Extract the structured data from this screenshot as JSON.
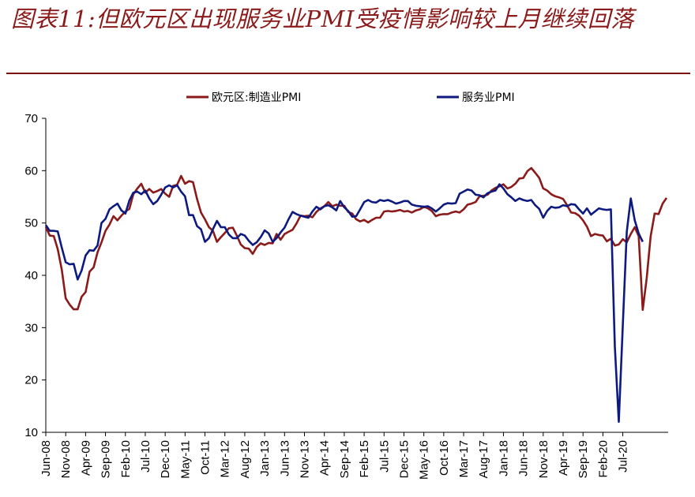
{
  "title": "图表11:但欧元区出现服务业PMI受疫情影响较上月继续回落",
  "chart_data": {
    "type": "line",
    "x_start": "2008-06",
    "x_end": "2020-11",
    "x_tick_labels": [
      "Jun-08",
      "Nov-08",
      "Apr-09",
      "Sep-09",
      "Feb-10",
      "Jul-10",
      "Dec-10",
      "May-11",
      "Oct-11",
      "Mar-12",
      "Aug-12",
      "Jan-13",
      "Jun-13",
      "Nov-13",
      "Apr-14",
      "Sep-14",
      "Feb-15",
      "Jul-15",
      "Dec-15",
      "May-16",
      "Oct-16",
      "Mar-17",
      "Aug-17",
      "Jan-18",
      "Jun-18",
      "Nov-18",
      "Apr-19",
      "Sep-19",
      "Feb-20",
      "Jul-20"
    ],
    "ylim": [
      10,
      70
    ],
    "y_ticks": [
      10,
      20,
      30,
      40,
      50,
      60,
      70
    ],
    "legend_position": "top",
    "series": [
      {
        "name": "欧元区:制造业PMI",
        "color": "#8b1a1a",
        "values": [
          49.2,
          47.6,
          47.5,
          45.0,
          41.1,
          35.6,
          34.4,
          33.5,
          33.5,
          35.9,
          36.8,
          40.7,
          41.5,
          44.4,
          46.3,
          48.5,
          49.7,
          51.3,
          50.5,
          51.4,
          52.2,
          52.7,
          55.5,
          56.6,
          57.5,
          55.8,
          56.5,
          55.8,
          56.1,
          56.5,
          55.6,
          55.0,
          57.1,
          57.3,
          59.0,
          57.5,
          58.0,
          57.8,
          54.6,
          52.0,
          50.7,
          49.2,
          48.5,
          46.4,
          47.3,
          48.1,
          49.0,
          49.1,
          47.6,
          45.9,
          45.2,
          45.1,
          44.1,
          45.4,
          46.1,
          45.8,
          46.2,
          46.1,
          47.9,
          46.8,
          47.9,
          48.3,
          48.7,
          49.9,
          51.4,
          51.3,
          51.4,
          51.1,
          52.1,
          52.8,
          53.2,
          54.0,
          53.2,
          53.5,
          53.3,
          53.3,
          52.1,
          51.8,
          50.7,
          50.3,
          50.6,
          50.1,
          50.6,
          51.0,
          51.0,
          52.2,
          52.3,
          52.2,
          52.3,
          52.5,
          52.2,
          52.3,
          52.0,
          52.4,
          52.6,
          53.1,
          52.8,
          52.3,
          51.3,
          51.6,
          51.7,
          51.7,
          52.0,
          52.2,
          52.0,
          52.6,
          53.5,
          53.7,
          54.0,
          55.1,
          55.2,
          55.4,
          56.2,
          56.7,
          57.0,
          57.4,
          56.6,
          56.9,
          57.5,
          58.5,
          58.6,
          59.9,
          60.5,
          59.6,
          58.6,
          56.6,
          56.2,
          55.5,
          55.1,
          54.9,
          54.6,
          53.4,
          52.0,
          51.9,
          51.4,
          50.5,
          49.3,
          47.5,
          47.9,
          47.7,
          47.6,
          46.5,
          47.0,
          45.7,
          45.9,
          46.9,
          46.3,
          47.9,
          49.2,
          47.5,
          33.4,
          39.4,
          47.4,
          51.8,
          51.7,
          53.7,
          54.8
        ],
        "color_note": "dark red"
      },
      {
        "name": "服务业PMI",
        "color": "#0d1a80",
        "values": [
          49.6,
          48.5,
          48.5,
          48.4,
          45.3,
          42.5,
          42.1,
          42.2,
          39.2,
          40.9,
          43.8,
          44.8,
          44.7,
          45.7,
          50.0,
          50.8,
          52.6,
          53.2,
          53.7,
          52.4,
          51.8,
          54.3,
          55.8,
          56.0,
          55.5,
          56.2,
          54.7,
          53.6,
          54.2,
          55.4,
          56.8,
          57.2,
          56.8,
          57.2,
          56.0,
          55.1,
          51.5,
          51.5,
          49.4,
          48.8,
          46.4,
          47.1,
          48.8,
          50.4,
          49.2,
          49.2,
          47.8,
          47.1,
          47.1,
          47.9,
          47.6,
          46.6,
          45.8,
          46.3,
          47.3,
          48.6,
          48.0,
          46.4,
          47.1,
          48.2,
          49.1,
          50.7,
          52.1,
          51.7,
          51.4,
          51.2,
          51.0,
          52.2,
          53.1,
          52.6,
          53.2,
          53.4,
          53.0,
          52.4,
          54.2,
          53.0,
          52.3,
          51.2,
          51.3,
          52.6,
          54.0,
          54.4,
          54.0,
          53.9,
          54.4,
          54.2,
          54.4,
          54.1,
          53.7,
          53.9,
          54.2,
          54.2,
          53.5,
          53.3,
          53.2,
          53.1,
          53.2,
          52.8,
          52.2,
          52.8,
          53.5,
          53.8,
          53.7,
          53.8,
          55.6,
          56.0,
          56.4,
          56.2,
          55.4,
          55.3,
          54.9,
          55.7,
          56.0,
          56.2,
          57.4,
          56.6,
          55.5,
          54.9,
          54.2,
          54.7,
          54.4,
          54.2,
          54.4,
          53.4,
          52.7,
          51.0,
          52.3,
          53.1,
          52.9,
          53.0,
          53.4,
          53.2,
          53.6,
          53.5,
          52.6,
          51.8,
          52.8,
          51.6,
          52.2,
          52.8,
          52.6,
          52.5,
          52.6,
          26.4,
          12.0,
          30.5,
          48.3,
          54.7,
          50.5,
          48.0,
          46.4
        ],
        "color_note": "dark blue"
      }
    ]
  },
  "legend": {
    "manufacturing_label": "欧元区:制造业PMI",
    "services_label": "服务业PMI"
  }
}
